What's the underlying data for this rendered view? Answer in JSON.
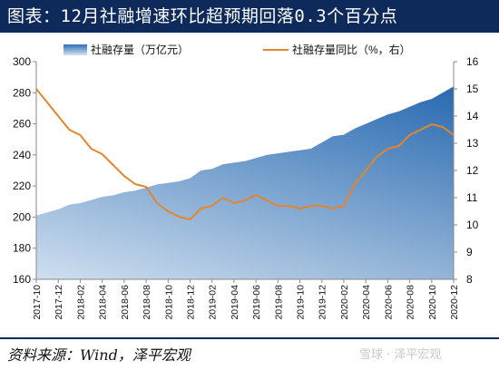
{
  "title": "图表：12月社融增速环比超预期回落0.3个百分点",
  "source": "资料来源：Wind，泽平宏观",
  "watermark": "雪球 · 泽平宏观",
  "colors": {
    "title_bg": "#0e2a5a",
    "area_top": "#2d6fb5",
    "area_bottom": "#d3e2f1",
    "line": "#e3862b"
  },
  "chart_data": {
    "type": "area",
    "legend_position": "top",
    "grid": false,
    "y_left": {
      "label": "社融存量（万亿元）",
      "range": [
        160,
        300
      ],
      "ticks": [
        160,
        180,
        200,
        220,
        240,
        260,
        280,
        300
      ]
    },
    "y_right": {
      "label": "社融存量同比（%，右）",
      "range": [
        8,
        16
      ],
      "ticks": [
        8,
        9,
        10,
        11,
        12,
        13,
        14,
        15,
        16
      ]
    },
    "x_ticks": [
      "2017-10",
      "2017-12",
      "2018-02",
      "2018-04",
      "2018-06",
      "2018-08",
      "2018-10",
      "2018-12",
      "2019-02",
      "2019-04",
      "2019-06",
      "2019-08",
      "2019-10",
      "2019-12",
      "2020-02",
      "2020-04",
      "2020-06",
      "2020-08",
      "2020-10",
      "2020-12"
    ],
    "x": [
      "2017-10",
      "2017-11",
      "2017-12",
      "2018-01",
      "2018-02",
      "2018-03",
      "2018-04",
      "2018-05",
      "2018-06",
      "2018-07",
      "2018-08",
      "2018-09",
      "2018-10",
      "2018-11",
      "2018-12",
      "2019-01",
      "2019-02",
      "2019-03",
      "2019-04",
      "2019-05",
      "2019-06",
      "2019-07",
      "2019-08",
      "2019-09",
      "2019-10",
      "2019-11",
      "2019-12",
      "2020-01",
      "2020-02",
      "2020-03",
      "2020-04",
      "2020-05",
      "2020-06",
      "2020-07",
      "2020-08",
      "2020-09",
      "2020-10",
      "2020-11",
      "2020-12"
    ],
    "series": [
      {
        "name": "社融存量（万亿元）",
        "type": "area",
        "axis": "left",
        "values": [
          201,
          203,
          205,
          208,
          209,
          211,
          213,
          214,
          216,
          217,
          219,
          221,
          222,
          223,
          225,
          230,
          231,
          234,
          235,
          236,
          238,
          240,
          241,
          242,
          243,
          244,
          248,
          252,
          253,
          257,
          260,
          263,
          266,
          268,
          271,
          274,
          276,
          280,
          284
        ]
      },
      {
        "name": "社融存量同比（%，右）",
        "type": "line",
        "axis": "right",
        "values": [
          15.0,
          14.5,
          14.0,
          13.5,
          13.3,
          12.8,
          12.6,
          12.2,
          11.8,
          11.5,
          11.4,
          10.8,
          10.5,
          10.3,
          10.2,
          10.6,
          10.7,
          11.0,
          10.8,
          10.9,
          11.1,
          10.9,
          10.7,
          10.7,
          10.6,
          10.7,
          10.7,
          10.6,
          10.7,
          11.5,
          12.0,
          12.5,
          12.8,
          12.9,
          13.3,
          13.5,
          13.7,
          13.6,
          13.3
        ]
      }
    ]
  }
}
